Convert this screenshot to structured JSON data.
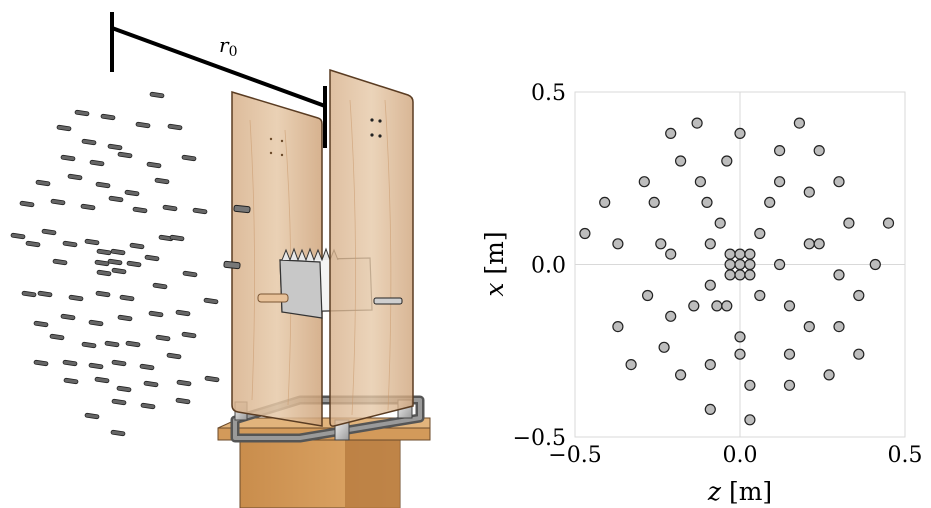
{
  "illustration": {
    "r0_label": "r",
    "r0_subscript": "0"
  },
  "chart_data": {
    "type": "scatter",
    "x_axis": {
      "var": "z",
      "unit": " [m]",
      "min": -0.5,
      "max": 0.5,
      "ticks": [
        -0.5,
        0.0,
        0.5
      ],
      "tick_labels": [
        "−0.5",
        "0.0",
        "0.5"
      ]
    },
    "y_axis": {
      "var": "x",
      "unit": " [m]",
      "min": -0.5,
      "max": 0.5,
      "ticks": [
        -0.5,
        0.0,
        0.5
      ],
      "tick_labels": [
        "−0.5",
        "0.0",
        "0.5"
      ]
    },
    "zero_lines": true,
    "marker_color": "#bdbdbd",
    "marker_edge": "#222222",
    "points": [
      [
        -0.47,
        0.09
      ],
      [
        -0.41,
        0.18
      ],
      [
        -0.37,
        0.06
      ],
      [
        -0.37,
        -0.18
      ],
      [
        -0.33,
        -0.29
      ],
      [
        -0.29,
        0.24
      ],
      [
        -0.28,
        -0.09
      ],
      [
        -0.26,
        0.18
      ],
      [
        -0.24,
        0.06
      ],
      [
        -0.23,
        -0.24
      ],
      [
        -0.21,
        0.38
      ],
      [
        -0.21,
        0.03
      ],
      [
        -0.21,
        -0.15
      ],
      [
        -0.18,
        0.3
      ],
      [
        -0.18,
        -0.32
      ],
      [
        -0.14,
        -0.12
      ],
      [
        -0.13,
        0.41
      ],
      [
        -0.12,
        0.24
      ],
      [
        -0.1,
        0.18
      ],
      [
        -0.09,
        0.06
      ],
      [
        -0.09,
        -0.06
      ],
      [
        -0.09,
        -0.29
      ],
      [
        -0.09,
        -0.42
      ],
      [
        -0.07,
        -0.12
      ],
      [
        -0.06,
        0.12
      ],
      [
        -0.04,
        0.3
      ],
      [
        -0.04,
        -0.12
      ],
      [
        -0.03,
        0.03
      ],
      [
        -0.03,
        0.0
      ],
      [
        -0.03,
        -0.03
      ],
      [
        0.0,
        0.38
      ],
      [
        0.0,
        0.03
      ],
      [
        0.0,
        0.0
      ],
      [
        0.0,
        -0.03
      ],
      [
        0.0,
        -0.21
      ],
      [
        0.0,
        -0.26
      ],
      [
        0.03,
        0.03
      ],
      [
        0.03,
        0.0
      ],
      [
        0.03,
        -0.03
      ],
      [
        0.03,
        -0.35
      ],
      [
        0.03,
        -0.45
      ],
      [
        0.06,
        0.09
      ],
      [
        0.06,
        -0.09
      ],
      [
        0.09,
        0.18
      ],
      [
        0.12,
        0.33
      ],
      [
        0.12,
        0.24
      ],
      [
        0.12,
        0.0
      ],
      [
        0.15,
        -0.12
      ],
      [
        0.15,
        -0.26
      ],
      [
        0.15,
        -0.35
      ],
      [
        0.18,
        0.41
      ],
      [
        0.21,
        0.21
      ],
      [
        0.21,
        0.06
      ],
      [
        0.21,
        -0.18
      ],
      [
        0.24,
        0.33
      ],
      [
        0.24,
        0.06
      ],
      [
        0.27,
        -0.32
      ],
      [
        0.3,
        0.24
      ],
      [
        0.3,
        -0.03
      ],
      [
        0.3,
        -0.18
      ],
      [
        0.33,
        0.12
      ],
      [
        0.36,
        -0.09
      ],
      [
        0.36,
        -0.26
      ],
      [
        0.41,
        0.0
      ],
      [
        0.45,
        0.12
      ]
    ]
  }
}
